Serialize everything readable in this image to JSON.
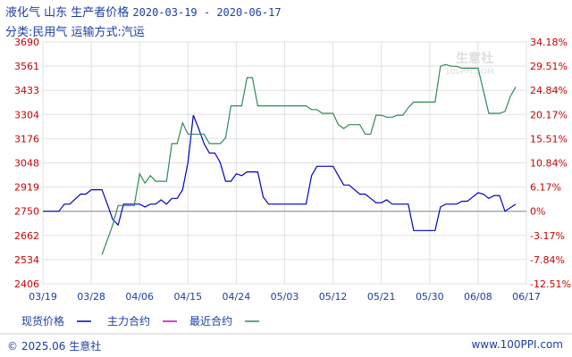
{
  "header": {
    "title": "液化气  山东  生产者价格",
    "date_range": "2020-03-19 - 2020-06-17",
    "subtitle": "分类:民用气  运输方式:汽运"
  },
  "watermark": {
    "text": "生意社",
    "url": "100PPI.COM"
  },
  "footer": {
    "copyright": "© 2025.06 生意社",
    "url": "www.100PPI.com"
  },
  "colors": {
    "spot": "#0000cc",
    "main": "#cc00cc",
    "recent": "#2e8b57",
    "axis": "#cc0000",
    "grid": "#e0e0e0"
  },
  "chart_data": {
    "type": "line",
    "title": "液化气 山东 生产者价格",
    "x_tick_labels": [
      "03/19",
      "03/28",
      "04/06",
      "04/15",
      "04/24",
      "05/03",
      "05/12",
      "05/21",
      "05/30",
      "06/08",
      "06/17"
    ],
    "y_left_ticks": [
      "3690",
      "3561",
      "3433",
      "3304",
      "3176",
      "3048",
      "2919",
      "2750",
      "2662",
      "2534",
      "2406"
    ],
    "y_right_ticks": [
      "34.18%",
      "29.51%",
      "24.84%",
      "20.17%",
      "15.51%",
      "10.84%",
      "6.17%",
      "0%",
      "-3.17%",
      "-7.84%",
      "-12.51%"
    ],
    "ylim": [
      2406,
      3690
    ],
    "baseline": 2750,
    "grid": true,
    "legend_position": "bottom",
    "series": [
      {
        "name": "现货价格",
        "color": "#0000cc",
        "points": [
          [
            0,
            2750
          ],
          [
            3,
            2750
          ],
          [
            4,
            2800
          ],
          [
            5,
            2800
          ],
          [
            7,
            2870
          ],
          [
            8,
            2870
          ],
          [
            9,
            2900
          ],
          [
            10,
            2900
          ],
          [
            11,
            2900
          ],
          [
            12,
            2800
          ],
          [
            13,
            2720
          ],
          [
            14,
            2700
          ],
          [
            15,
            2800
          ],
          [
            16,
            2800
          ],
          [
            17,
            2800
          ],
          [
            18,
            2800
          ],
          [
            19,
            2780
          ],
          [
            20,
            2800
          ],
          [
            21,
            2800
          ],
          [
            22,
            2830
          ],
          [
            23,
            2800
          ],
          [
            24,
            2840
          ],
          [
            25,
            2840
          ],
          [
            26,
            2900
          ],
          [
            27,
            3050
          ],
          [
            28,
            3300
          ],
          [
            29,
            3230
          ],
          [
            30,
            3150
          ],
          [
            31,
            3100
          ],
          [
            32,
            3100
          ],
          [
            33,
            3050
          ],
          [
            34,
            2950
          ],
          [
            35,
            2950
          ],
          [
            36,
            2990
          ],
          [
            37,
            2980
          ],
          [
            38,
            3000
          ],
          [
            40,
            3000
          ],
          [
            41,
            2850
          ],
          [
            42,
            2800
          ],
          [
            43,
            2800
          ],
          [
            49,
            2800
          ],
          [
            50,
            2980
          ],
          [
            51,
            3030
          ],
          [
            52,
            3030
          ],
          [
            54,
            3030
          ],
          [
            55,
            2980
          ],
          [
            56,
            2930
          ],
          [
            57,
            2930
          ],
          [
            58,
            2900
          ],
          [
            59,
            2870
          ],
          [
            60,
            2870
          ],
          [
            61,
            2840
          ],
          [
            62,
            2810
          ],
          [
            63,
            2810
          ],
          [
            64,
            2830
          ],
          [
            65,
            2800
          ],
          [
            66,
            2800
          ],
          [
            67,
            2800
          ],
          [
            68,
            2800
          ],
          [
            69,
            2680
          ],
          [
            70,
            2680
          ],
          [
            73,
            2680
          ],
          [
            74,
            2780
          ],
          [
            75,
            2800
          ],
          [
            76,
            2800
          ],
          [
            77,
            2800
          ],
          [
            78,
            2820
          ],
          [
            79,
            2820
          ],
          [
            80,
            2850
          ],
          [
            81,
            2880
          ],
          [
            82,
            2870
          ],
          [
            83,
            2840
          ],
          [
            84,
            2860
          ],
          [
            85,
            2860
          ],
          [
            86,
            2750
          ],
          [
            88,
            2800
          ]
        ]
      },
      {
        "name": "主力合约",
        "color": "#cc00cc",
        "points": []
      },
      {
        "name": "最近合约",
        "color": "#2e8b57",
        "points": [
          [
            11,
            2560
          ],
          [
            13,
            2700
          ],
          [
            14,
            2790
          ],
          [
            15,
            2790
          ],
          [
            16,
            2790
          ],
          [
            17,
            2790
          ],
          [
            18,
            2990
          ],
          [
            19,
            2940
          ],
          [
            20,
            2980
          ],
          [
            21,
            2950
          ],
          [
            22,
            2950
          ],
          [
            23,
            2950
          ],
          [
            24,
            3150
          ],
          [
            25,
            3150
          ],
          [
            26,
            3260
          ],
          [
            27,
            3200
          ],
          [
            28,
            3200
          ],
          [
            29,
            3200
          ],
          [
            30,
            3200
          ],
          [
            31,
            3150
          ],
          [
            32,
            3150
          ],
          [
            33,
            3150
          ],
          [
            34,
            3180
          ],
          [
            35,
            3350
          ],
          [
            37,
            3350
          ],
          [
            38,
            3500
          ],
          [
            39,
            3500
          ],
          [
            40,
            3350
          ],
          [
            41,
            3350
          ],
          [
            49,
            3350
          ],
          [
            50,
            3330
          ],
          [
            51,
            3330
          ],
          [
            52,
            3310
          ],
          [
            53,
            3310
          ],
          [
            54,
            3310
          ],
          [
            55,
            3250
          ],
          [
            56,
            3230
          ],
          [
            57,
            3250
          ],
          [
            58,
            3250
          ],
          [
            59,
            3250
          ],
          [
            60,
            3200
          ],
          [
            61,
            3200
          ],
          [
            62,
            3300
          ],
          [
            63,
            3300
          ],
          [
            64,
            3290
          ],
          [
            65,
            3290
          ],
          [
            66,
            3300
          ],
          [
            67,
            3300
          ],
          [
            68,
            3340
          ],
          [
            69,
            3370
          ],
          [
            70,
            3370
          ],
          [
            71,
            3370
          ],
          [
            72,
            3370
          ],
          [
            73,
            3370
          ],
          [
            74,
            3560
          ],
          [
            75,
            3570
          ],
          [
            76,
            3560
          ],
          [
            77,
            3560
          ],
          [
            78,
            3550
          ],
          [
            79,
            3550
          ],
          [
            80,
            3550
          ],
          [
            81,
            3550
          ],
          [
            82,
            3430
          ],
          [
            83,
            3310
          ],
          [
            84,
            3310
          ],
          [
            85,
            3310
          ],
          [
            86,
            3320
          ],
          [
            87,
            3400
          ],
          [
            88,
            3450
          ]
        ]
      }
    ]
  }
}
